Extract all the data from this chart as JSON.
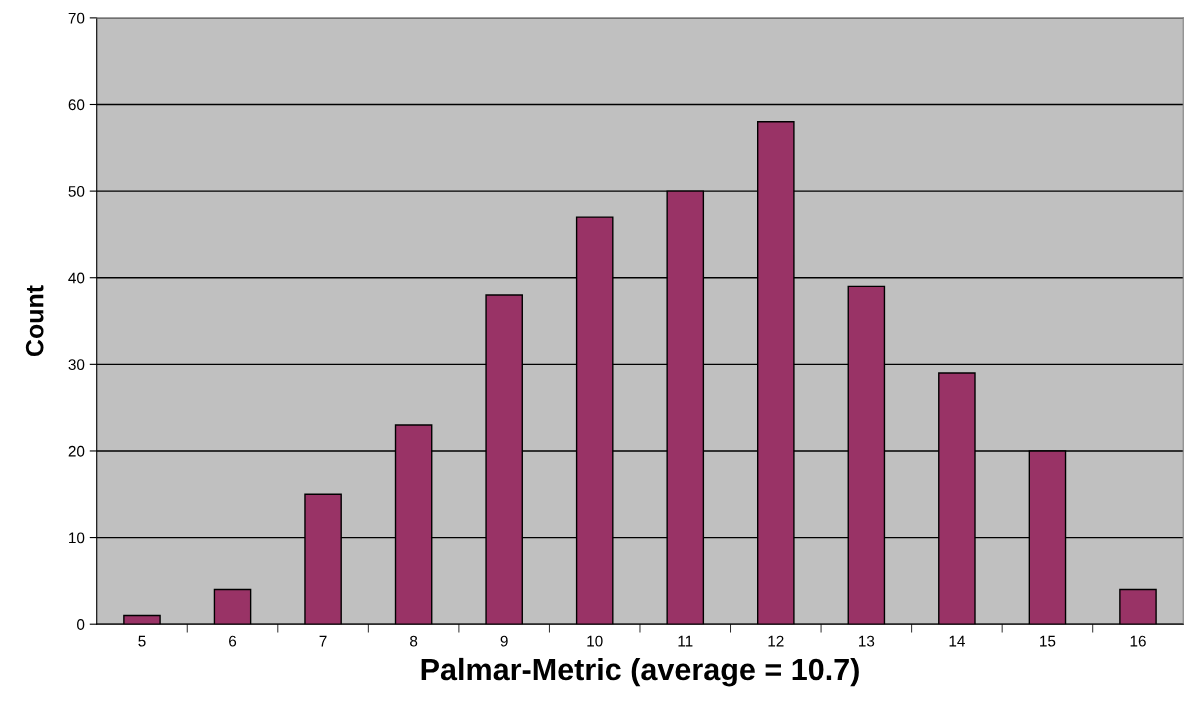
{
  "chart_data": {
    "type": "bar",
    "xlabel": "Palmar-Metric (average = 10.7)",
    "ylabel": "Count",
    "categories": [
      "5",
      "6",
      "7",
      "8",
      "9",
      "10",
      "11",
      "12",
      "13",
      "14",
      "15",
      "16"
    ],
    "values": [
      1,
      4,
      15,
      23,
      38,
      47,
      50,
      58,
      39,
      29,
      20,
      4
    ],
    "color": "#993366",
    "ylim": [
      0,
      70
    ],
    "yticks": [
      0,
      10,
      20,
      30,
      40,
      50,
      60,
      70
    ],
    "grid": "y"
  }
}
